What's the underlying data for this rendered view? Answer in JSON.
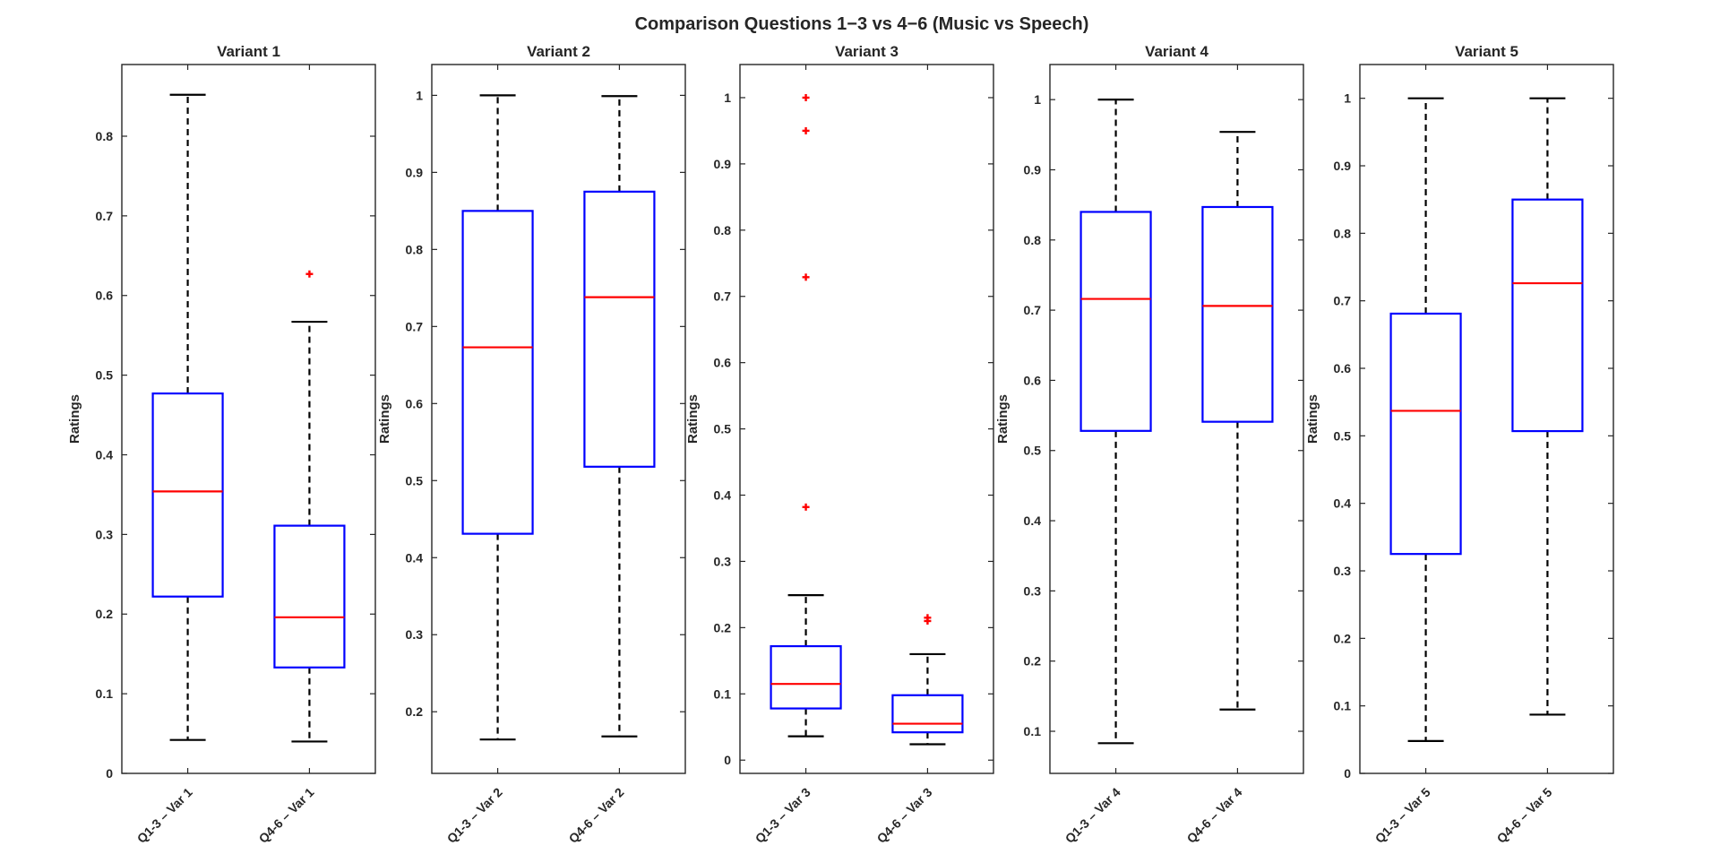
{
  "chart_data": {
    "type": "boxplot",
    "title": "Comparison Questions 1−3 vs 4−6 (Music vs Speech)",
    "ylabel": "Ratings",
    "colors": {
      "box": "#0000ff",
      "median": "#ff0000",
      "whisker": "#000000",
      "outlier": "#ff0000",
      "axes": "#262626"
    },
    "panels": [
      {
        "title": "Variant 1",
        "ylim": [
          0,
          0.89
        ],
        "yticks": [
          "0",
          "0.1",
          "0.2",
          "0.3",
          "0.4",
          "0.5",
          "0.6",
          "0.7",
          "0.8"
        ],
        "yticks_values": [
          0,
          0.1,
          0.2,
          0.3,
          0.4,
          0.5,
          0.6,
          0.7,
          0.8
        ],
        "categories": [
          "Q1-3 – Var 1",
          "Q4-6 – Var 1"
        ],
        "boxes": [
          {
            "whisker_low": 0.042,
            "q1": 0.222,
            "median": 0.354,
            "q3": 0.477,
            "whisker_high": 0.852,
            "outliers": []
          },
          {
            "whisker_low": 0.04,
            "q1": 0.133,
            "median": 0.196,
            "q3": 0.311,
            "whisker_high": 0.567,
            "outliers": [
              0.627
            ]
          }
        ]
      },
      {
        "title": "Variant 2",
        "ylim": [
          0.12,
          1.04
        ],
        "yticks": [
          "0.2",
          "0.3",
          "0.4",
          "0.5",
          "0.6",
          "0.7",
          "0.8",
          "0.9",
          "1"
        ],
        "yticks_values": [
          0.2,
          0.3,
          0.4,
          0.5,
          0.6,
          0.7,
          0.8,
          0.9,
          1
        ],
        "categories": [
          "Q1-3 – Var 2",
          "Q4-6 – Var 2"
        ],
        "boxes": [
          {
            "whisker_low": 0.164,
            "q1": 0.431,
            "median": 0.673,
            "q3": 0.85,
            "whisker_high": 1.0,
            "outliers": []
          },
          {
            "whisker_low": 0.168,
            "q1": 0.518,
            "median": 0.738,
            "q3": 0.875,
            "whisker_high": 0.999,
            "outliers": []
          }
        ]
      },
      {
        "title": "Variant 3",
        "ylim": [
          -0.02,
          1.05
        ],
        "yticks": [
          "0",
          "0.1",
          "0.2",
          "0.3",
          "0.4",
          "0.5",
          "0.6",
          "0.7",
          "0.8",
          "0.9",
          "1"
        ],
        "yticks_values": [
          0,
          0.1,
          0.2,
          0.3,
          0.4,
          0.5,
          0.6,
          0.7,
          0.8,
          0.9,
          1
        ],
        "categories": [
          "Q1-3 – Var 3",
          "Q4-6 – Var 3"
        ],
        "boxes": [
          {
            "whisker_low": 0.036,
            "q1": 0.078,
            "median": 0.115,
            "q3": 0.172,
            "whisker_high": 0.249,
            "outliers": [
              0.382,
              0.729,
              0.95,
              1.0
            ]
          },
          {
            "whisker_low": 0.024,
            "q1": 0.042,
            "median": 0.055,
            "q3": 0.098,
            "whisker_high": 0.16,
            "outliers": [
              0.21,
              0.215
            ]
          }
        ]
      },
      {
        "title": "Variant 4",
        "ylim": [
          0.04,
          1.05
        ],
        "yticks": [
          "0.1",
          "0.2",
          "0.3",
          "0.4",
          "0.5",
          "0.6",
          "0.7",
          "0.8",
          "0.9",
          "1"
        ],
        "yticks_values": [
          0.1,
          0.2,
          0.3,
          0.4,
          0.5,
          0.6,
          0.7,
          0.8,
          0.9,
          1
        ],
        "categories": [
          "Q1-3 – Var 4",
          "Q4-6 – Var 4"
        ],
        "boxes": [
          {
            "whisker_low": 0.083,
            "q1": 0.528,
            "median": 0.716,
            "q3": 0.84,
            "whisker_high": 1.0,
            "outliers": []
          },
          {
            "whisker_low": 0.131,
            "q1": 0.541,
            "median": 0.706,
            "q3": 0.847,
            "whisker_high": 0.954,
            "outliers": []
          }
        ]
      },
      {
        "title": "Variant 5",
        "ylim": [
          0,
          1.05
        ],
        "yticks": [
          "0",
          "0.1",
          "0.2",
          "0.3",
          "0.4",
          "0.5",
          "0.6",
          "0.7",
          "0.8",
          "0.9",
          "1"
        ],
        "yticks_values": [
          0,
          0.1,
          0.2,
          0.3,
          0.4,
          0.5,
          0.6,
          0.7,
          0.8,
          0.9,
          1
        ],
        "categories": [
          "Q1-3 – Var 5",
          "Q4-6 – Var 5"
        ],
        "boxes": [
          {
            "whisker_low": 0.048,
            "q1": 0.325,
            "median": 0.537,
            "q3": 0.681,
            "whisker_high": 1.0,
            "outliers": []
          },
          {
            "whisker_low": 0.087,
            "q1": 0.507,
            "median": 0.726,
            "q3": 0.85,
            "whisker_high": 1.0,
            "outliers": []
          }
        ]
      }
    ]
  }
}
